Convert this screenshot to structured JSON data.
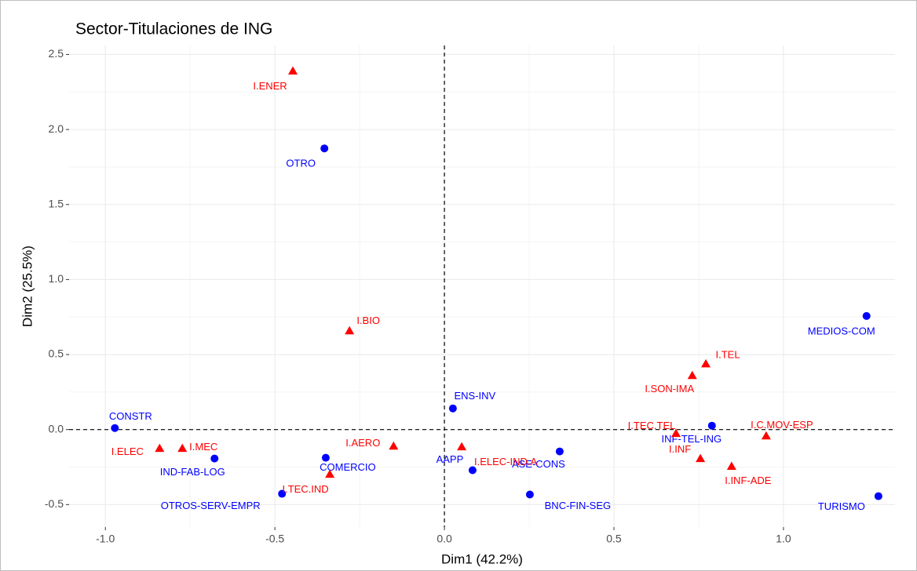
{
  "chart_data": {
    "type": "scatter",
    "title": "Sector-Titulaciones de ING",
    "xlabel": "Dim1 (42.2%)",
    "ylabel": "Dim2 (25.5%)",
    "xlim": [
      -1.107,
      1.329
    ],
    "ylim": [
      -0.65,
      2.56
    ],
    "xticks": [
      {
        "value": -1.0,
        "label": "-1.0"
      },
      -0.5,
      {
        "value": 0,
        "label": "0.0"
      },
      0.5,
      {
        "value": 1.0,
        "label": "1.0"
      }
    ],
    "yticks": [
      -0.5,
      {
        "value": 0,
        "label": "0.0"
      },
      0.5,
      {
        "value": 1.0,
        "label": "1.0"
      },
      1.5,
      {
        "value": 2.0,
        "label": "2.0"
      },
      2.5
    ],
    "grid": true,
    "hline": 0,
    "vline": 0,
    "series": [
      {
        "color": "#0000ff",
        "marker": "circle",
        "labels": [
          "OTRO",
          "CONSTR",
          "ENS-INV",
          "MEDIOS-COM",
          "INF-TEL-ING",
          "IND-FAB-LOG",
          "COMERCIO",
          "OTROS-SERV-EMPR",
          "AAPP",
          "ASE-CONS",
          "BNC-FIN-SEG",
          "TURISMO"
        ],
        "x": [
          -0.354,
          -0.972,
          0.025,
          1.245,
          0.789,
          -0.678,
          -0.35,
          -0.479,
          0.083,
          0.34,
          0.252,
          1.28
        ],
        "values": [
          1.874,
          0.01,
          0.141,
          0.757,
          0.026,
          -0.193,
          -0.188,
          -0.428,
          -0.271,
          -0.146,
          -0.433,
          -0.444
        ]
      },
      {
        "color": "#ff0000",
        "marker": "triangle",
        "labels": [
          "I.ENER",
          "I.BIO",
          "I.TEL",
          "I.SON-IMA",
          "I.TEC.TEL",
          "I.C.MOV-ESP",
          "I.INF",
          "I.INF-ADE",
          "I.ELEC",
          "I.MEC",
          "I.AERO",
          "I.ELEC-IND.A",
          "I.TEC.IND"
        ],
        "x": [
          -0.447,
          -0.28,
          0.771,
          0.731,
          0.683,
          0.949,
          0.755,
          0.847,
          -0.84,
          -0.773,
          -0.15,
          0.051,
          -0.338
        ],
        "values": [
          2.39,
          0.658,
          0.438,
          0.36,
          -0.026,
          -0.042,
          -0.193,
          -0.245,
          -0.125,
          -0.125,
          -0.11,
          -0.115,
          -0.298
        ]
      }
    ]
  }
}
